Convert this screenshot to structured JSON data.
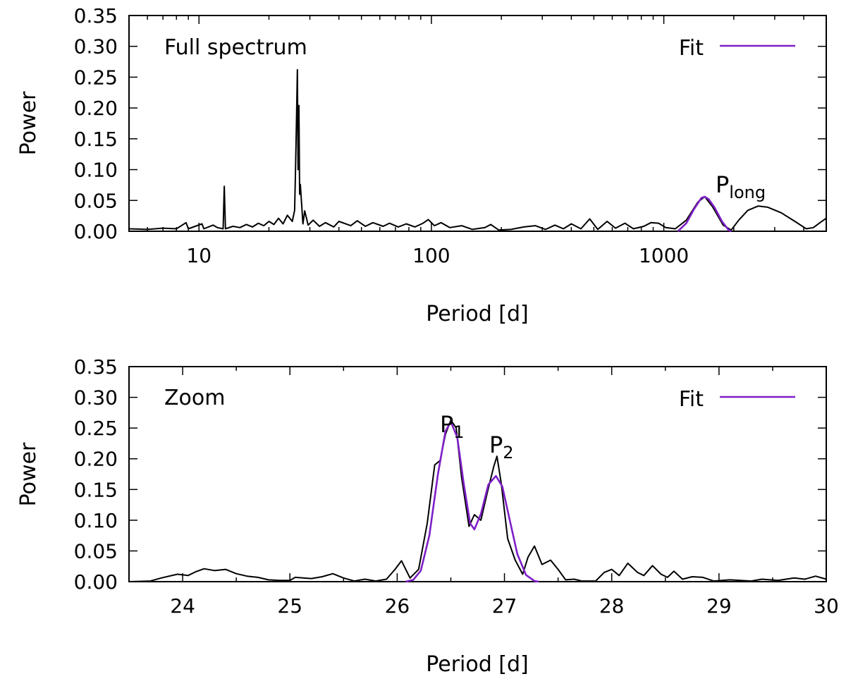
{
  "chart_data": [
    {
      "panel": "top",
      "type": "line",
      "annotation": "Full spectrum",
      "ylabel": "Power",
      "xlabel": "Period [d]",
      "x_scale": "log",
      "xlim": [
        5,
        5000
      ],
      "ylim": [
        0,
        0.35
      ],
      "grid": false,
      "legend": {
        "position": "top-right",
        "entries": [
          {
            "label": "Fit",
            "color": "#7e1fc6"
          }
        ]
      },
      "x_tick_labels": [
        "10",
        "100",
        "1000"
      ],
      "y_tick_labels": [
        "0.00",
        "0.05",
        "0.10",
        "0.15",
        "0.20",
        "0.25",
        "0.30",
        "0.35"
      ],
      "peak_label": {
        "main": "P",
        "sub": "long",
        "x": 1500,
        "y": 0.056
      },
      "series": [
        {
          "role": "data",
          "color": "#000000",
          "points": [
            [
              5,
              0.004
            ],
            [
              6,
              0.003
            ],
            [
              7,
              0.005
            ],
            [
              8,
              0.004
            ],
            [
              8.8,
              0.014
            ],
            [
              9,
              0.004
            ],
            [
              10.3,
              0.012
            ],
            [
              10.5,
              0.004
            ],
            [
              11.5,
              0.01
            ],
            [
              12,
              0.006
            ],
            [
              12.7,
              0.004
            ],
            [
              12.85,
              0.073
            ],
            [
              13,
              0.004
            ],
            [
              14,
              0.008
            ],
            [
              15,
              0.006
            ],
            [
              16,
              0.011
            ],
            [
              17,
              0.007
            ],
            [
              18,
              0.013
            ],
            [
              19,
              0.009
            ],
            [
              20,
              0.016
            ],
            [
              21,
              0.011
            ],
            [
              22,
              0.021
            ],
            [
              23,
              0.012
            ],
            [
              24,
              0.026
            ],
            [
              25.2,
              0.016
            ],
            [
              25.8,
              0.034
            ],
            [
              26.0,
              0.09
            ],
            [
              26.3,
              0.19
            ],
            [
              26.5,
              0.262
            ],
            [
              26.7,
              0.1
            ],
            [
              26.92,
              0.204
            ],
            [
              27.1,
              0.06
            ],
            [
              27.3,
              0.076
            ],
            [
              28,
              0.012
            ],
            [
              28.5,
              0.033
            ],
            [
              29.5,
              0.01
            ],
            [
              31,
              0.018
            ],
            [
              33,
              0.008
            ],
            [
              35,
              0.014
            ],
            [
              38,
              0.007
            ],
            [
              40,
              0.016
            ],
            [
              45,
              0.009
            ],
            [
              48,
              0.017
            ],
            [
              52,
              0.008
            ],
            [
              56,
              0.014
            ],
            [
              62,
              0.008
            ],
            [
              66,
              0.013
            ],
            [
              72,
              0.007
            ],
            [
              78,
              0.012
            ],
            [
              85,
              0.007
            ],
            [
              92,
              0.013
            ],
            [
              97,
              0.019
            ],
            [
              103,
              0.009
            ],
            [
              110,
              0.014
            ],
            [
              120,
              0.006
            ],
            [
              135,
              0.009
            ],
            [
              150,
              0.003
            ],
            [
              170,
              0.006
            ],
            [
              180,
              0.011
            ],
            [
              195,
              0.002
            ],
            [
              220,
              0.003
            ],
            [
              250,
              0.007
            ],
            [
              280,
              0.009
            ],
            [
              310,
              0.003
            ],
            [
              340,
              0.01
            ],
            [
              370,
              0.004
            ],
            [
              400,
              0.012
            ],
            [
              440,
              0.004
            ],
            [
              480,
              0.02
            ],
            [
              520,
              0.003
            ],
            [
              570,
              0.016
            ],
            [
              620,
              0.005
            ],
            [
              680,
              0.013
            ],
            [
              740,
              0.004
            ],
            [
              820,
              0.008
            ],
            [
              880,
              0.014
            ],
            [
              950,
              0.013
            ],
            [
              1020,
              0.006
            ],
            [
              1120,
              0.004
            ],
            [
              1250,
              0.018
            ],
            [
              1400,
              0.047
            ],
            [
              1500,
              0.056
            ],
            [
              1620,
              0.04
            ],
            [
              1800,
              0.01
            ],
            [
              1950,
              0.002
            ],
            [
              2100,
              0.018
            ],
            [
              2300,
              0.034
            ],
            [
              2550,
              0.041
            ],
            [
              2800,
              0.039
            ],
            [
              3200,
              0.03
            ],
            [
              3700,
              0.015
            ],
            [
              4100,
              0.004
            ],
            [
              4400,
              0.006
            ],
            [
              4700,
              0.014
            ],
            [
              5000,
              0.021
            ]
          ]
        },
        {
          "role": "fit",
          "name": "Fit",
          "color": "#7e1fc6",
          "points": [
            [
              1150,
              0.0
            ],
            [
              1250,
              0.013
            ],
            [
              1350,
              0.036
            ],
            [
              1450,
              0.054
            ],
            [
              1500,
              0.056
            ],
            [
              1560,
              0.052
            ],
            [
              1650,
              0.039
            ],
            [
              1780,
              0.016
            ],
            [
              1900,
              0.002
            ],
            [
              1950,
              0.0
            ]
          ]
        }
      ]
    },
    {
      "panel": "bottom",
      "type": "line",
      "annotation": "Zoom",
      "ylabel": "Power",
      "xlabel": "Period [d]",
      "x_scale": "linear",
      "xlim": [
        23.5,
        30
      ],
      "ylim": [
        0,
        0.35
      ],
      "grid": false,
      "legend": {
        "position": "top-right",
        "entries": [
          {
            "label": "Fit",
            "color": "#7e1fc6"
          }
        ]
      },
      "x_tick_labels": [
        "24",
        "25",
        "26",
        "27",
        "28",
        "29",
        "30"
      ],
      "y_tick_labels": [
        "0.00",
        "0.05",
        "0.10",
        "0.15",
        "0.20",
        "0.25",
        "0.30",
        "0.35"
      ],
      "peak_labels": [
        {
          "main": "P",
          "sub": "1",
          "x": 26.5,
          "y": 0.263
        },
        {
          "main": "P",
          "sub": "2",
          "x": 26.92,
          "y": 0.204
        }
      ],
      "series": [
        {
          "role": "data",
          "color": "#000000",
          "points": [
            [
              23.5,
              0.0
            ],
            [
              23.7,
              0.001
            ],
            [
              23.8,
              0.006
            ],
            [
              23.95,
              0.012
            ],
            [
              24.05,
              0.01
            ],
            [
              24.12,
              0.016
            ],
            [
              24.2,
              0.021
            ],
            [
              24.3,
              0.018
            ],
            [
              24.4,
              0.02
            ],
            [
              24.5,
              0.013
            ],
            [
              24.6,
              0.009
            ],
            [
              24.7,
              0.007
            ],
            [
              24.8,
              0.003
            ],
            [
              24.9,
              0.002
            ],
            [
              25.0,
              0.002
            ],
            [
              25.05,
              0.007
            ],
            [
              25.2,
              0.005
            ],
            [
              25.3,
              0.008
            ],
            [
              25.4,
              0.013
            ],
            [
              25.5,
              0.006
            ],
            [
              25.6,
              0.001
            ],
            [
              25.7,
              0.004
            ],
            [
              25.8,
              0.001
            ],
            [
              25.9,
              0.004
            ],
            [
              25.98,
              0.02
            ],
            [
              26.04,
              0.034
            ],
            [
              26.12,
              0.006
            ],
            [
              26.2,
              0.02
            ],
            [
              26.28,
              0.095
            ],
            [
              26.35,
              0.19
            ],
            [
              26.4,
              0.197
            ],
            [
              26.45,
              0.24
            ],
            [
              26.5,
              0.263
            ],
            [
              26.55,
              0.25
            ],
            [
              26.6,
              0.17
            ],
            [
              26.67,
              0.09
            ],
            [
              26.72,
              0.109
            ],
            [
              26.78,
              0.1
            ],
            [
              26.84,
              0.145
            ],
            [
              26.9,
              0.187
            ],
            [
              26.93,
              0.204
            ],
            [
              26.97,
              0.16
            ],
            [
              27.03,
              0.07
            ],
            [
              27.1,
              0.035
            ],
            [
              27.17,
              0.012
            ],
            [
              27.22,
              0.04
            ],
            [
              27.28,
              0.058
            ],
            [
              27.35,
              0.028
            ],
            [
              27.43,
              0.035
            ],
            [
              27.5,
              0.02
            ],
            [
              27.57,
              0.003
            ],
            [
              27.65,
              0.004
            ],
            [
              27.72,
              0.001
            ],
            [
              27.85,
              0.001
            ],
            [
              27.93,
              0.015
            ],
            [
              28.0,
              0.02
            ],
            [
              28.07,
              0.01
            ],
            [
              28.15,
              0.03
            ],
            [
              28.24,
              0.015
            ],
            [
              28.3,
              0.01
            ],
            [
              28.38,
              0.026
            ],
            [
              28.46,
              0.012
            ],
            [
              28.52,
              0.007
            ],
            [
              28.58,
              0.017
            ],
            [
              28.66,
              0.004
            ],
            [
              28.75,
              0.008
            ],
            [
              28.85,
              0.007
            ],
            [
              28.95,
              0.001
            ],
            [
              29.1,
              0.003
            ],
            [
              29.3,
              0.001
            ],
            [
              29.4,
              0.004
            ],
            [
              29.55,
              0.002
            ],
            [
              29.7,
              0.006
            ],
            [
              29.8,
              0.004
            ],
            [
              29.9,
              0.009
            ],
            [
              30.0,
              0.004
            ]
          ]
        },
        {
          "role": "fit",
          "name": "Fit",
          "color": "#7e1fc6",
          "points": [
            [
              26.08,
              0.0
            ],
            [
              26.15,
              0.003
            ],
            [
              26.22,
              0.018
            ],
            [
              26.3,
              0.075
            ],
            [
              26.38,
              0.175
            ],
            [
              26.45,
              0.245
            ],
            [
              26.5,
              0.26
            ],
            [
              26.56,
              0.235
            ],
            [
              26.62,
              0.16
            ],
            [
              26.68,
              0.095
            ],
            [
              26.72,
              0.085
            ],
            [
              26.78,
              0.11
            ],
            [
              26.85,
              0.158
            ],
            [
              26.92,
              0.172
            ],
            [
              26.98,
              0.155
            ],
            [
              27.05,
              0.1
            ],
            [
              27.12,
              0.045
            ],
            [
              27.2,
              0.011
            ],
            [
              27.28,
              0.001
            ],
            [
              27.32,
              0.0
            ]
          ]
        }
      ]
    }
  ]
}
